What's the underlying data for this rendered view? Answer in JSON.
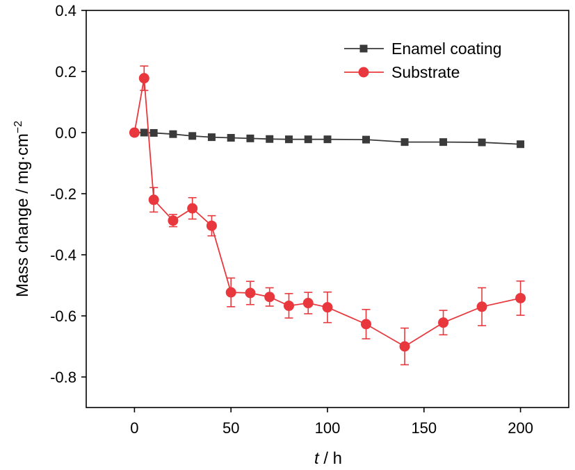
{
  "chart_data": {
    "type": "line",
    "xlabel_italic": "t",
    "xlabel_rest": " / h",
    "ylabel": "Mass change / mg·cm",
    "ylabel_sup": "−2",
    "xlim": [
      -25,
      225
    ],
    "ylim": [
      -0.9,
      0.4
    ],
    "x_ticks": [
      0,
      50,
      100,
      150,
      200
    ],
    "x_tick_labels": [
      "0",
      "50",
      "100",
      "150",
      "200"
    ],
    "y_ticks": [
      0.4,
      0.2,
      0.0,
      -0.2,
      -0.4,
      -0.6,
      -0.8
    ],
    "y_tick_labels": [
      "0.4",
      "0.2",
      "0.0",
      "-0.2",
      "-0.4",
      "-0.6",
      "-0.8"
    ],
    "legend_position": "top-right",
    "series": [
      {
        "name": "Enamel coating",
        "color": "#3a3a3a",
        "marker": "square",
        "x": [
          0,
          5,
          10,
          20,
          30,
          40,
          50,
          60,
          70,
          80,
          90,
          100,
          120,
          140,
          160,
          180,
          200
        ],
        "y": [
          0.0,
          0.0,
          -0.001,
          -0.005,
          -0.011,
          -0.015,
          -0.017,
          -0.019,
          -0.021,
          -0.022,
          -0.022,
          -0.022,
          -0.023,
          -0.031,
          -0.031,
          -0.032,
          -0.038
        ]
      },
      {
        "name": "Substrate",
        "color": "#e8383d",
        "marker": "circle",
        "x": [
          0,
          5,
          10,
          20,
          30,
          40,
          50,
          60,
          70,
          80,
          90,
          100,
          120,
          140,
          160,
          180,
          200
        ],
        "y": [
          0.0,
          0.178,
          -0.22,
          -0.288,
          -0.248,
          -0.305,
          -0.523,
          -0.525,
          -0.538,
          -0.567,
          -0.558,
          -0.572,
          -0.627,
          -0.7,
          -0.622,
          -0.57,
          -0.542
        ],
        "err": [
          0,
          0.04,
          0.04,
          0.02,
          0.035,
          0.033,
          0.047,
          0.038,
          0.03,
          0.04,
          0.035,
          0.05,
          0.048,
          0.06,
          0.04,
          0.062,
          0.056
        ]
      }
    ]
  }
}
